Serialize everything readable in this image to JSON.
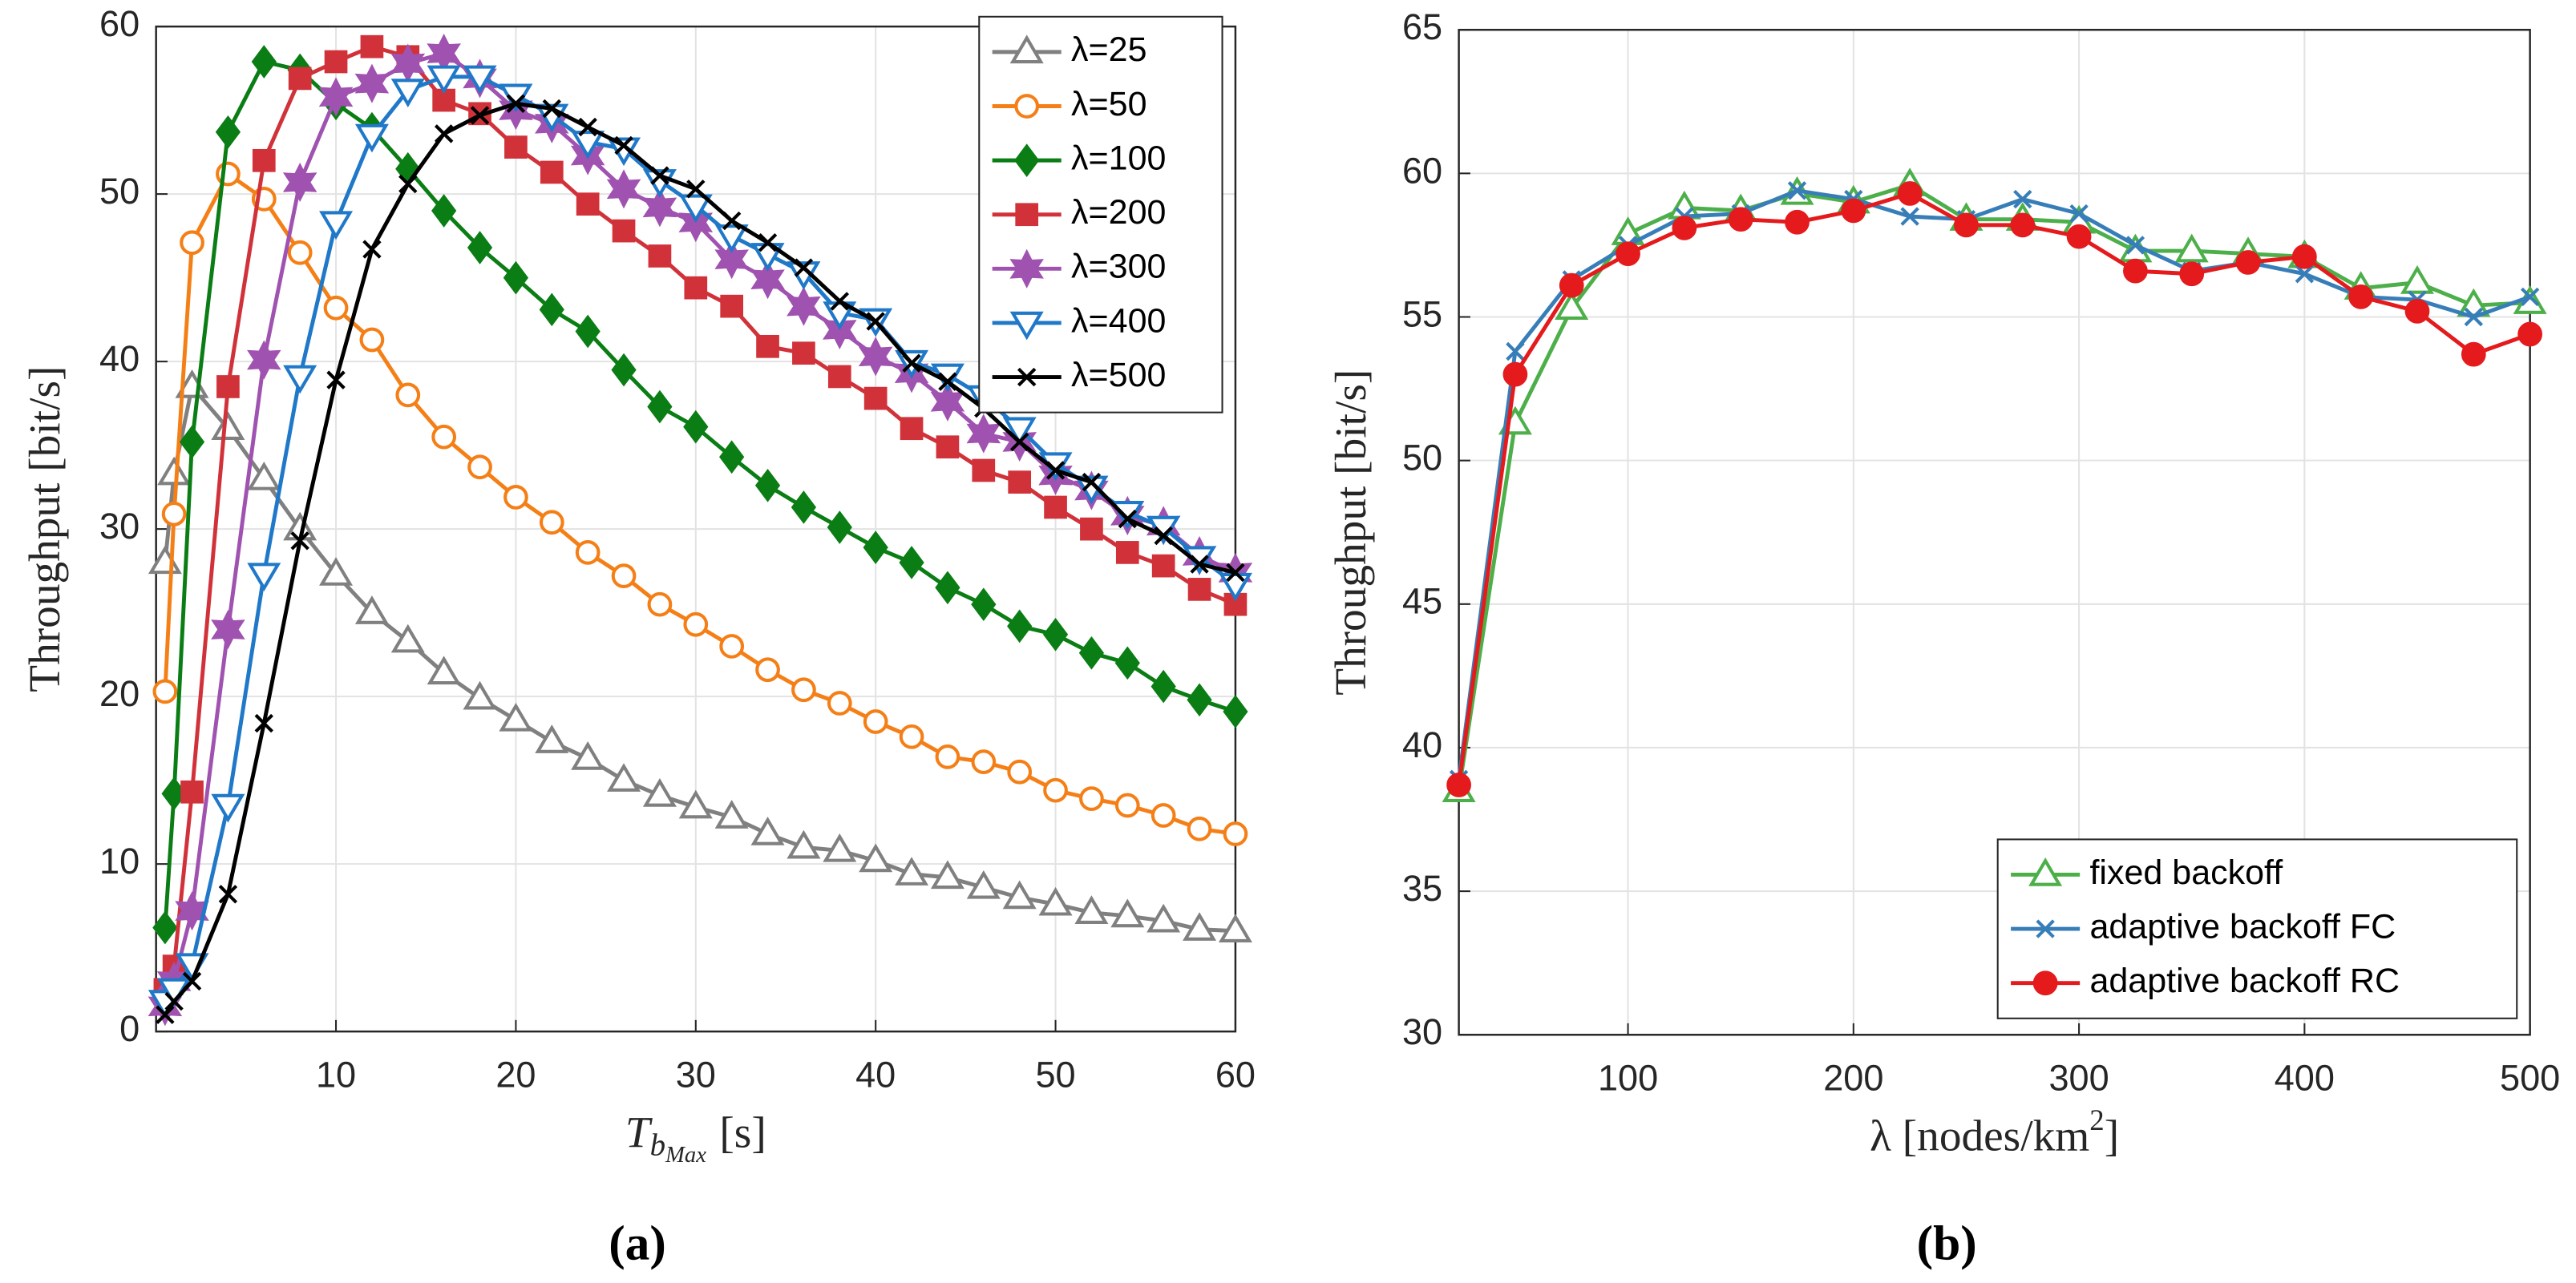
{
  "chart_data": [
    {
      "type": "line",
      "panel_label": "(a)",
      "y_label": "Throughput [bit/s]",
      "x_label": "T",
      "x_label_sub": "b",
      "x_label_subsub": "Max",
      "x_label_unit": "[s]",
      "xlim": [
        0,
        60
      ],
      "xticks": [
        10,
        20,
        30,
        40,
        50,
        60
      ],
      "ylim": [
        0,
        60
      ],
      "yticks": [
        0,
        10,
        20,
        30,
        40,
        50,
        60
      ],
      "grid": true,
      "legend": "upper right",
      "x": [
        0.5,
        1,
        2,
        4,
        6,
        8,
        10,
        12,
        14,
        16,
        18,
        20,
        22,
        24,
        26,
        28,
        30,
        32,
        34,
        36,
        38,
        40,
        42,
        44,
        46,
        48,
        50,
        52,
        54,
        56,
        58,
        60
      ],
      "series": [
        {
          "name": "λ=25",
          "color": "#808080",
          "marker": "triangle-up",
          "marker_filled": false,
          "values": [
            28,
            33.3,
            38.5,
            36,
            33,
            30,
            27.3,
            25,
            23.3,
            21.4,
            19.9,
            18.6,
            17.3,
            16.3,
            15,
            14.1,
            13.4,
            12.8,
            11.8,
            11,
            10.8,
            10.2,
            9.4,
            9.2,
            8.6,
            8,
            7.6,
            7.1,
            6.9,
            6.6,
            6.1,
            6
          ]
        },
        {
          "name": "λ=50",
          "color": "#f57f17",
          "marker": "circle",
          "marker_filled": false,
          "values": [
            20.3,
            30.9,
            47.1,
            51.2,
            49.7,
            46.5,
            43.2,
            41.3,
            38,
            35.5,
            33.7,
            31.9,
            30.4,
            28.6,
            27.2,
            25.5,
            24.3,
            23,
            21.6,
            20.4,
            19.6,
            18.5,
            17.6,
            16.4,
            16.1,
            15.5,
            14.4,
            13.9,
            13.5,
            12.9,
            12.1,
            11.8
          ]
        },
        {
          "name": "λ=100",
          "color": "#0a7d14",
          "marker": "diamond",
          "marker_filled": true,
          "values": [
            6.2,
            14.2,
            35.2,
            53.7,
            57.9,
            57.4,
            55.4,
            53.9,
            51.5,
            49,
            46.8,
            45,
            43.1,
            41.8,
            39.5,
            37.3,
            36.1,
            34.3,
            32.6,
            31.3,
            30.1,
            28.9,
            28,
            26.5,
            25.5,
            24.2,
            23.7,
            22.6,
            22,
            20.6,
            19.8,
            19.1
          ]
        },
        {
          "name": "λ=200",
          "color": "#d1323a",
          "marker": "square",
          "marker_filled": true,
          "values": [
            2.5,
            3.9,
            14.3,
            38.5,
            52,
            56.9,
            57.9,
            58.8,
            58.2,
            55.6,
            54.8,
            52.8,
            51.3,
            49.4,
            47.8,
            46.3,
            44.4,
            43.3,
            40.9,
            40.5,
            39.1,
            37.8,
            36,
            34.9,
            33.5,
            32.8,
            31.3,
            30,
            28.6,
            27.8,
            26.4,
            25.5
          ]
        },
        {
          "name": "λ=300",
          "color": "#a052b0",
          "marker": "hexagram",
          "marker_filled": true,
          "values": [
            1.5,
            3,
            7.2,
            24,
            40.1,
            50.7,
            55.8,
            56.6,
            57.8,
            58.4,
            56.9,
            55,
            54.2,
            52.3,
            50.3,
            49.2,
            48.3,
            46.1,
            44.9,
            43.3,
            41.9,
            40.3,
            39.3,
            37.6,
            35.7,
            35.2,
            33.2,
            32.3,
            30.8,
            30.2,
            28.4,
            27.4
          ]
        },
        {
          "name": "λ=400",
          "color": "#1f78c8",
          "marker": "triangle-down",
          "marker_filled": false,
          "values": [
            1.8,
            2.5,
            4,
            13.5,
            27.3,
            39.1,
            48.3,
            53.5,
            56.2,
            57,
            57,
            55.9,
            54.7,
            53.1,
            52.7,
            50.8,
            49.3,
            47.5,
            46.4,
            45.3,
            42.9,
            42.5,
            40,
            39.2,
            37.9,
            36,
            33.9,
            32.5,
            31,
            30.1,
            28.3,
            26.7
          ]
        },
        {
          "name": "λ=500",
          "color": "#000000",
          "marker": "x",
          "marker_filled": false,
          "values": [
            1,
            1.8,
            3,
            8.2,
            18.4,
            29.3,
            38.9,
            46.7,
            50.6,
            53.6,
            54.7,
            55.4,
            55.1,
            54,
            52.9,
            51.1,
            50.3,
            48.4,
            47.1,
            45.6,
            43.6,
            42.4,
            39.9,
            38.8,
            37.2,
            35.2,
            33.5,
            32.8,
            30.6,
            29.6,
            27.9,
            27.4
          ]
        }
      ]
    },
    {
      "type": "line",
      "panel_label": "(b)",
      "y_label": "Throughput [bit/s]",
      "x_label": "λ [nodes/km",
      "x_label_sup": "2",
      "x_label_end": "]",
      "xlim": [
        25,
        500
      ],
      "xticks": [
        100,
        200,
        300,
        400,
        500
      ],
      "ylim": [
        30,
        65
      ],
      "yticks": [
        30,
        35,
        40,
        45,
        50,
        55,
        60,
        65
      ],
      "grid": true,
      "legend": "lower right",
      "x": [
        25,
        50,
        75,
        100,
        125,
        150,
        175,
        200,
        225,
        250,
        275,
        300,
        325,
        350,
        375,
        400,
        425,
        450,
        475,
        500
      ],
      "series": [
        {
          "name": "fixed backoff",
          "color": "#4daf4a",
          "marker": "triangle-up",
          "marker_filled": false,
          "values": [
            38.5,
            51.3,
            55.3,
            57.9,
            58.8,
            58.7,
            59.3,
            59.0,
            59.6,
            58.4,
            58.4,
            58.3,
            57.3,
            57.3,
            57.2,
            57.1,
            56,
            56.2,
            55.4,
            55.5
          ]
        },
        {
          "name": "adaptive backoff FC",
          "color": "#377eb8",
          "marker": "x",
          "marker_filled": false,
          "values": [
            38.9,
            53.8,
            56.3,
            57.5,
            58.5,
            58.6,
            59.4,
            59.1,
            58.5,
            58.4,
            59.1,
            58.6,
            57.5,
            56.6,
            56.9,
            56.5,
            55.7,
            55.6,
            55.0,
            55.7
          ]
        },
        {
          "name": "adaptive backoff RC",
          "color": "#e41a1c",
          "marker": "circle",
          "marker_filled": true,
          "values": [
            38.7,
            53.0,
            56.1,
            57.2,
            58.1,
            58.4,
            58.3,
            58.7,
            59.3,
            58.2,
            58.2,
            57.8,
            56.6,
            56.5,
            56.9,
            57.1,
            55.7,
            55.2,
            53.7,
            54.4
          ]
        }
      ]
    }
  ]
}
